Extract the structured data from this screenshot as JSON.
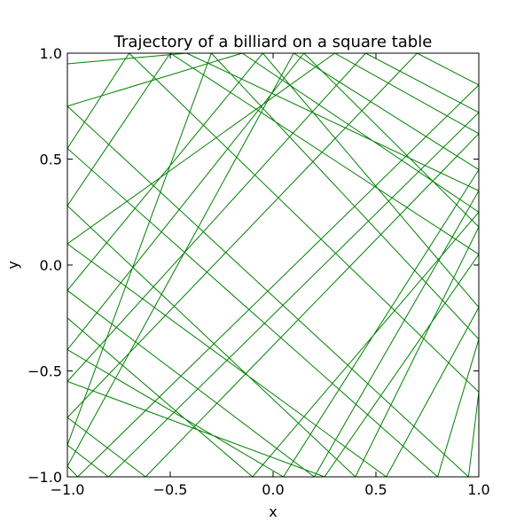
{
  "chart_data": {
    "type": "line",
    "title": "Trajectory of a billiard on a square table",
    "xlabel": "x",
    "ylabel": "y",
    "xlim": [
      -1.0,
      1.0
    ],
    "ylim": [
      -1.0,
      1.0
    ],
    "xticks": [
      -1.0,
      -0.5,
      0.0,
      0.5,
      1.0
    ],
    "yticks": [
      -1.0,
      -0.5,
      0.0,
      0.5,
      1.0
    ],
    "xtick_labels": [
      "−1.0",
      "−0.5",
      "0.0",
      "0.5",
      "1.0"
    ],
    "ytick_labels": [
      "−1.0",
      "−0.5",
      "0.0",
      "0.5",
      "1.0"
    ],
    "grid": false,
    "line_color": "#008000",
    "series": [
      {
        "points": [
          [
            -1.0,
            0.95
          ],
          [
            -0.42,
            1.0
          ],
          [
            1.0,
            0.35
          ],
          [
            0.2,
            -1.0
          ],
          [
            -1.0,
            -0.12
          ],
          [
            -0.05,
            1.0
          ],
          [
            1.0,
            -0.2
          ],
          [
            0.55,
            -1.0
          ],
          [
            -1.0,
            0.1
          ],
          [
            0.3,
            1.0
          ],
          [
            1.0,
            0.62
          ],
          [
            -0.62,
            -1.0
          ],
          [
            -1.0,
            -0.72
          ],
          [
            0.7,
            1.0
          ],
          [
            1.0,
            0.85
          ],
          [
            -0.95,
            -1.0
          ],
          [
            -1.0,
            -0.95
          ],
          [
            0.1,
            1.0
          ],
          [
            1.0,
            0.45
          ],
          [
            0.05,
            -1.0
          ],
          [
            -1.0,
            -0.4
          ],
          [
            0.15,
            1.0
          ],
          [
            1.0,
            0.18
          ],
          [
            0.4,
            -1.0
          ],
          [
            -1.0,
            0.28
          ],
          [
            -0.5,
            1.0
          ],
          [
            1.0,
            0.05
          ],
          [
            0.25,
            -1.0
          ],
          [
            -1.0,
            -0.55
          ],
          [
            0.45,
            1.0
          ],
          [
            1.0,
            0.72
          ],
          [
            -0.8,
            -1.0
          ],
          [
            -1.0,
            -0.85
          ],
          [
            -0.3,
            1.0
          ],
          [
            1.0,
            -0.35
          ],
          [
            0.8,
            -1.0
          ],
          [
            -1.0,
            0.55
          ],
          [
            -0.7,
            1.0
          ],
          [
            1.0,
            -0.6
          ],
          [
            0.95,
            -1.0
          ],
          [
            -1.0,
            0.75
          ],
          [
            -0.15,
            1.0
          ],
          [
            1.0,
            0.25
          ],
          [
            -0.1,
            -1.0
          ],
          [
            -1.0,
            -0.25
          ]
        ]
      }
    ]
  }
}
